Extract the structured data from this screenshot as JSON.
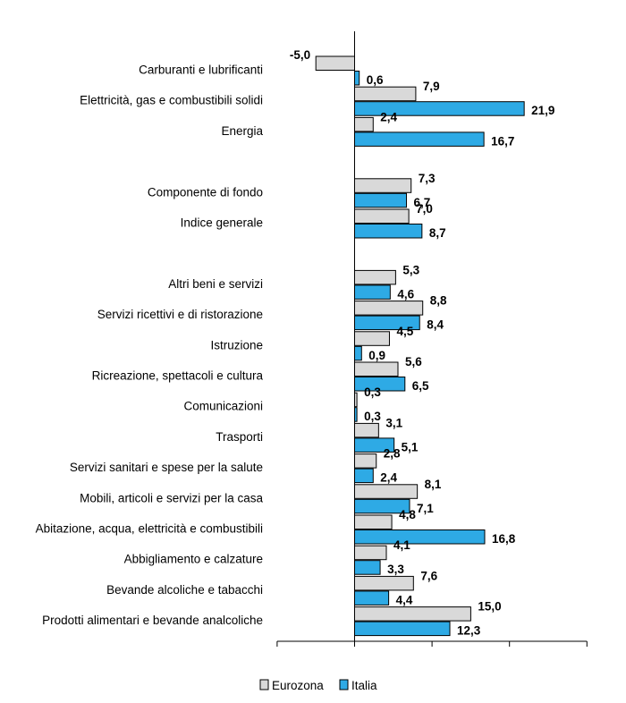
{
  "chart_data": {
    "type": "bar",
    "orientation": "horizontal",
    "categories": [
      "Carburanti e lubrificanti",
      "Elettricità, gas e combustibili solidi",
      "Energia",
      "",
      "Componente di fondo",
      "Indice generale",
      "",
      "Altri beni e servizi",
      "Servizi ricettivi e di ristorazione",
      "Istruzione",
      "Ricreazione, spettacoli e cultura",
      "Comunicazioni",
      "Trasporti",
      "Servizi sanitari e spese per la salute",
      "Mobili, articoli e servizi per la casa",
      "Abitazione, acqua, elettricità e combustibili",
      "Abbigliamento e calzature",
      "Bevande alcoliche e tabacchi",
      "Prodotti alimentari e bevande analcoliche"
    ],
    "series": [
      {
        "name": "Eurozona",
        "color": "#d9d9d9",
        "values": [
          -5.0,
          7.9,
          2.4,
          null,
          7.3,
          7.0,
          null,
          5.3,
          8.8,
          4.5,
          5.6,
          0.3,
          3.1,
          2.8,
          8.1,
          4.8,
          4.1,
          7.6,
          15.0
        ],
        "labels": [
          "-5,0",
          "7,9",
          "2,4",
          "",
          "7,3",
          "7,0",
          "",
          "5,3",
          "8,8",
          "4,5",
          "5,6",
          "0,3",
          "3,1",
          "2,8",
          "8,1",
          "4,8",
          "4,1",
          "7,6",
          "15,0"
        ]
      },
      {
        "name": "Italia",
        "color": "#2eaae5",
        "values": [
          0.6,
          21.9,
          16.7,
          null,
          6.7,
          8.7,
          null,
          4.6,
          8.4,
          0.9,
          6.5,
          0.3,
          5.1,
          2.4,
          7.1,
          16.8,
          3.3,
          4.4,
          12.3
        ],
        "labels": [
          "0,6",
          "21,9",
          "16,7",
          "",
          "6,7",
          "8,7",
          "",
          "4,6",
          "8,4",
          "0,9",
          "6,5",
          "0,3",
          "5,1",
          "2,4",
          "7,1",
          "16,8",
          "3,3",
          "4,4",
          "12,3"
        ]
      }
    ],
    "xlim": [
      -10,
      30
    ],
    "grid": false,
    "legend": "bottom"
  }
}
